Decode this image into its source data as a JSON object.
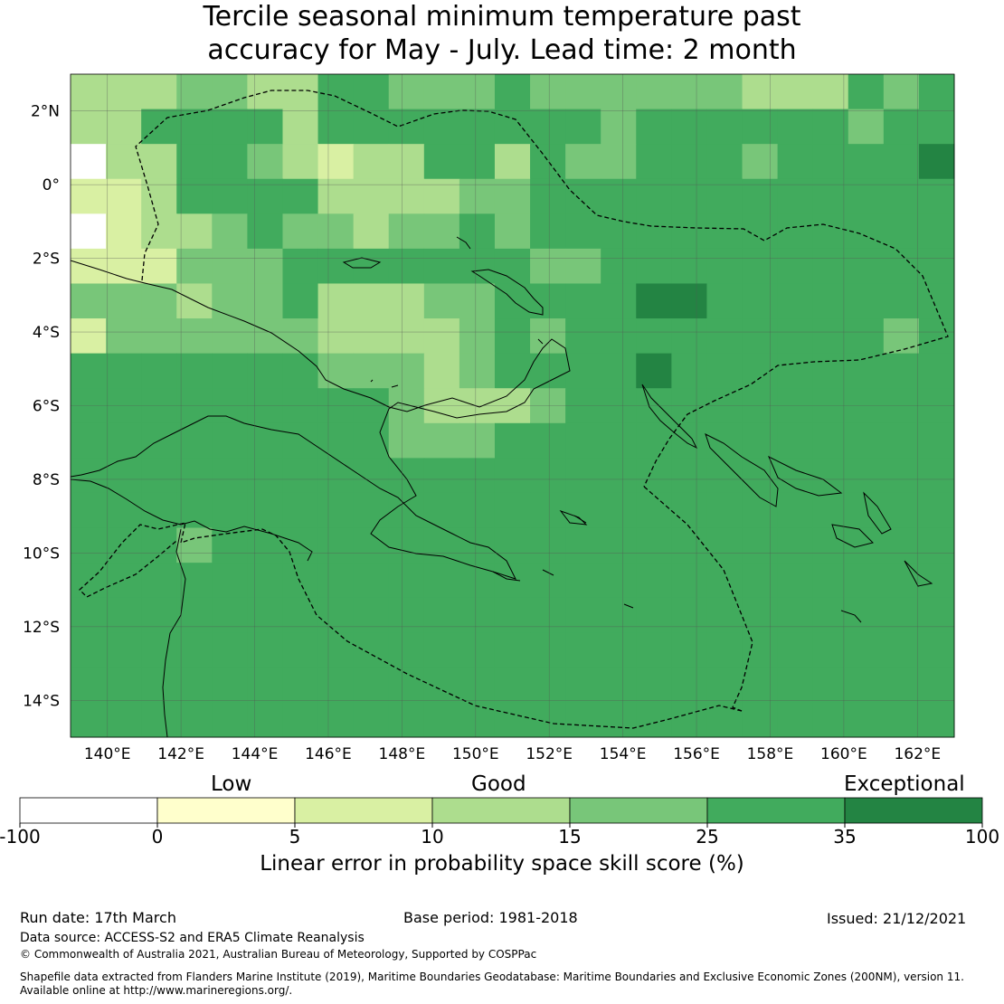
{
  "title_line1": "Tercile seasonal minimum temperature past",
  "title_line2": "accuracy for May - July. Lead time: 2 month",
  "map": {
    "lon_range": [
      139,
      163
    ],
    "lat_range": [
      -15,
      3
    ],
    "lon_ticks": [
      "140°E",
      "142°E",
      "144°E",
      "146°E",
      "148°E",
      "150°E",
      "152°E",
      "154°E",
      "156°E",
      "158°E",
      "160°E",
      "162°E"
    ],
    "lat_ticks": [
      "2°N",
      "0°",
      "2°S",
      "4°S",
      "6°S",
      "8°S",
      "10°S",
      "12°S",
      "14°S"
    ],
    "background_color": "#41ab5d",
    "grid_rows": [
      "3334433554445444444333545",
      "3355553555555554555555455",
      "0335543233553544555455556",
      "2235555333344555555555555",
      "0233454434454555555555555",
      "2224445555555445555555555",
      "4443445333445555665555555",
      "2444444333345455555555545",
      "5555555444345555655555555",
      "5555555554333455555555555",
      "5555555554445555555555555",
      "5555555555555555555555555",
      "5555555555555555555555555",
      "5554555555555555555555555",
      "5555555555555555555555555",
      "5555555555555555555555555",
      "5555555555555555555555555",
      "5555555555555555555555555",
      "5555555555555555555555555"
    ]
  },
  "colorbar": {
    "categories": [
      "Low",
      "Good",
      "Exceptional"
    ],
    "ticks": [
      "-100",
      "0",
      "5",
      "10",
      "15",
      "25",
      "35",
      "100"
    ],
    "colors": [
      "#ffffff",
      "#ffffcc",
      "#d9f0a3",
      "#addd8e",
      "#78c679",
      "#41ab5d",
      "#238443"
    ],
    "label": "Linear error in probability space skill score (%)"
  },
  "footer": {
    "run_date": "Run date: 17th March",
    "base_period": "Base period: 1981-2018",
    "issued": "Issued: 21/12/2021",
    "data_source": "Data source: ACCESS-S2 and ERA5 Climate Reanalysis",
    "copyright": "© Commonwealth of Australia 2021, Australian Bureau of Meteorology, Supported by COSPPac",
    "shapefile_1": "Shapefile data extracted from Flanders Marine Institute (2019), Maritime Boundaries Geodatabase: Maritime Boundaries and Exclusive Economic Zones (200NM), version 11.",
    "shapefile_2": "Available online at http://www.marineregions.org/."
  }
}
